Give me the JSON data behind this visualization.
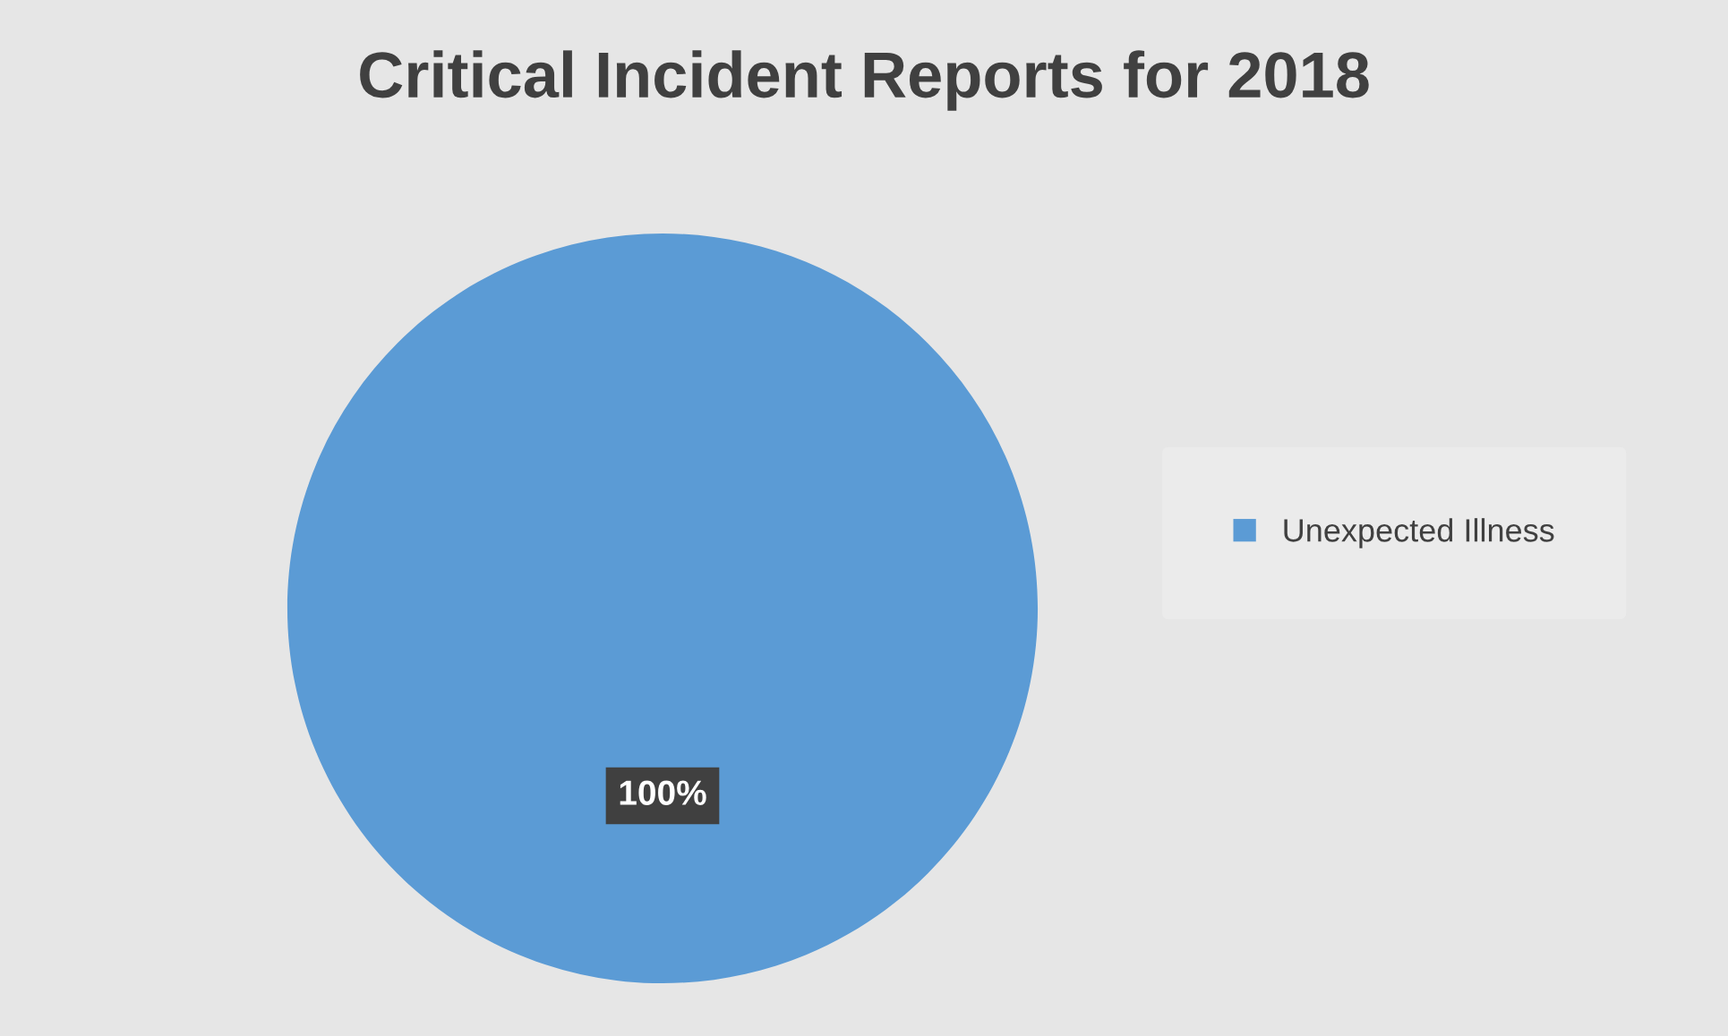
{
  "chart_data": {
    "type": "pie",
    "title": "Critical Incident Reports for 2018",
    "categories": [
      "Unexpected Illness"
    ],
    "values": [
      100
    ],
    "colors": [
      "#5b9bd5"
    ],
    "value_labels": [
      "100%"
    ],
    "legend": "right"
  }
}
